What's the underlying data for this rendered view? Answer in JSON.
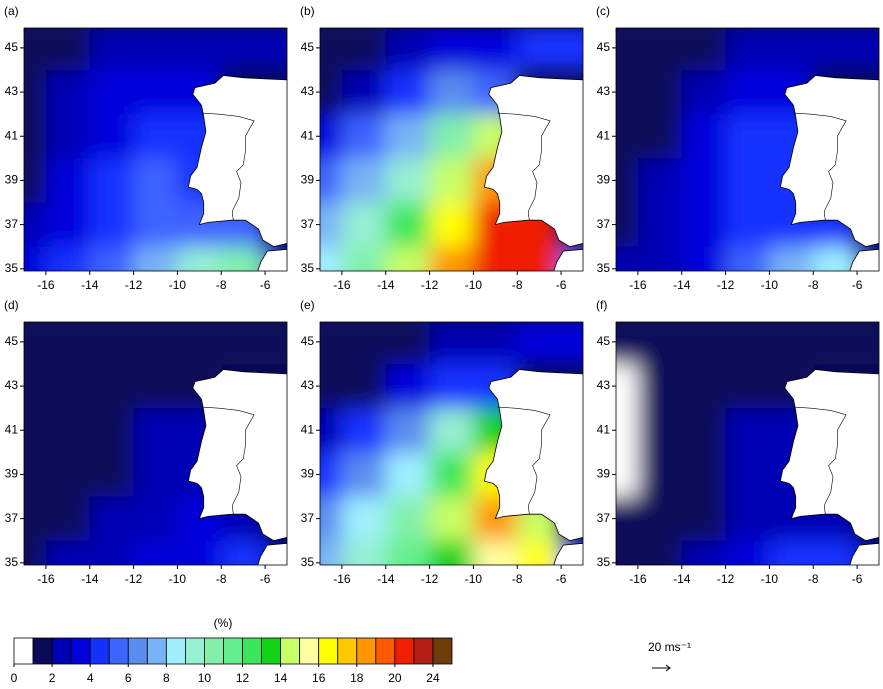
{
  "chart_data": [
    {
      "type": "contour",
      "title": "(a)",
      "x": [
        -17,
        -15,
        -13,
        -11,
        -9,
        -7,
        -5
      ],
      "y": [
        45,
        43,
        41,
        39,
        37,
        35
      ],
      "values": [
        [
          1.5,
          1.5,
          2.5,
          2.5,
          2.5,
          2.5,
          2.5
        ],
        [
          1.5,
          2.5,
          3.5,
          3.5,
          3.5,
          null,
          null
        ],
        [
          1.5,
          2.5,
          3.5,
          4.5,
          4.5,
          null,
          null
        ],
        [
          1.5,
          3.5,
          4.5,
          5.5,
          4.5,
          null,
          null
        ],
        [
          2.5,
          3.5,
          4.5,
          5.5,
          5.5,
          5.5,
          null
        ],
        [
          3.5,
          4.5,
          5.5,
          7.5,
          9.5,
          10.5,
          3.5
        ]
      ],
      "xlim": [
        -17,
        -5
      ],
      "ylim": [
        34.9,
        45.9
      ],
      "xticks": [
        -16,
        -14,
        -12,
        -10,
        -8,
        -6
      ],
      "yticks": [
        35,
        37,
        39,
        41,
        43,
        45
      ]
    },
    {
      "type": "contour",
      "title": "(b)",
      "x": [
        -17,
        -15,
        -13,
        -11,
        -9,
        -7,
        -5
      ],
      "y": [
        45,
        43,
        41,
        39,
        37,
        35
      ],
      "values": [
        [
          1.5,
          1.5,
          2.5,
          3.5,
          3.5,
          4.5,
          4.5
        ],
        [
          1.5,
          2.5,
          4.5,
          6.5,
          5.5,
          null,
          null
        ],
        [
          3.5,
          5.5,
          7.5,
          10.5,
          14.5,
          null,
          null
        ],
        [
          5.5,
          7.5,
          9.5,
          14.5,
          18.5,
          null,
          null
        ],
        [
          7.5,
          9.5,
          12.5,
          16.5,
          20.5,
          20.5,
          null
        ],
        [
          8.5,
          10.5,
          14.5,
          18.5,
          20.5,
          20.5,
          5.5
        ]
      ],
      "xlim": [
        -17,
        -5
      ],
      "ylim": [
        34.9,
        45.9
      ],
      "xticks": [
        -16,
        -14,
        -12,
        -10,
        -8,
        -6
      ],
      "yticks": [
        35,
        37,
        39,
        41,
        43,
        45
      ]
    },
    {
      "type": "contour",
      "title": "(c)",
      "x": [
        -17,
        -15,
        -13,
        -11,
        -9,
        -7,
        -5
      ],
      "y": [
        45,
        43,
        41,
        39,
        37,
        35
      ],
      "values": [
        [
          1.5,
          1.5,
          1.5,
          2.5,
          2.5,
          2.5,
          2.5
        ],
        [
          1.5,
          1.5,
          2.5,
          3.5,
          3.5,
          null,
          null
        ],
        [
          1.5,
          1.5,
          3.5,
          4.5,
          4.5,
          null,
          null
        ],
        [
          1.5,
          2.5,
          3.5,
          4.5,
          4.5,
          null,
          null
        ],
        [
          1.5,
          2.5,
          3.5,
          4.5,
          4.5,
          4.5,
          null
        ],
        [
          2.5,
          2.5,
          3.5,
          5.5,
          7.5,
          8.5,
          2.5
        ]
      ],
      "xlim": [
        -17,
        -5
      ],
      "ylim": [
        34.9,
        45.9
      ],
      "xticks": [
        -16,
        -14,
        -12,
        -10,
        -8,
        -6
      ],
      "yticks": [
        35,
        37,
        39,
        41,
        43,
        45
      ]
    },
    {
      "type": "contour",
      "title": "(d)",
      "x": [
        -17,
        -15,
        -13,
        -11,
        -9,
        -7,
        -5
      ],
      "y": [
        45,
        43,
        41,
        39,
        37,
        35
      ],
      "values": [
        [
          1.5,
          1.5,
          1.5,
          1.5,
          1.5,
          1.5,
          1.5
        ],
        [
          1.5,
          1.5,
          1.5,
          1.5,
          1.5,
          null,
          null
        ],
        [
          1.5,
          1.5,
          1.5,
          2.5,
          2.5,
          null,
          null
        ],
        [
          1.5,
          1.5,
          1.5,
          2.5,
          2.5,
          null,
          null
        ],
        [
          1.5,
          1.5,
          2.5,
          2.5,
          3.5,
          2.5,
          null
        ],
        [
          1.5,
          2.5,
          2.5,
          3.5,
          3.5,
          4.5,
          2.5
        ]
      ],
      "xlim": [
        -17,
        -5
      ],
      "ylim": [
        34.9,
        45.9
      ],
      "xticks": [
        -16,
        -14,
        -12,
        -10,
        -8,
        -6
      ],
      "yticks": [
        35,
        37,
        39,
        41,
        43,
        45
      ]
    },
    {
      "type": "contour",
      "title": "(e)",
      "x": [
        -17,
        -15,
        -13,
        -11,
        -9,
        -7,
        -5
      ],
      "y": [
        45,
        43,
        41,
        39,
        37,
        35
      ],
      "values": [
        [
          1.5,
          1.5,
          1.5,
          2.5,
          2.5,
          3.5,
          3.5
        ],
        [
          1.5,
          1.5,
          3.5,
          4.5,
          4.5,
          null,
          null
        ],
        [
          2.5,
          4.5,
          6.5,
          9.5,
          13.5,
          null,
          null
        ],
        [
          4.5,
          6.5,
          8.5,
          12.5,
          16.5,
          null,
          null
        ],
        [
          6.5,
          8.5,
          10.5,
          14.5,
          18.5,
          14.5,
          null
        ],
        [
          7.5,
          9.5,
          11.5,
          13.5,
          15.5,
          16.5,
          4.5
        ]
      ],
      "xlim": [
        -17,
        -5
      ],
      "ylim": [
        34.9,
        45.9
      ],
      "xticks": [
        -16,
        -14,
        -12,
        -10,
        -8,
        -6
      ],
      "yticks": [
        35,
        37,
        39,
        41,
        43,
        45
      ]
    },
    {
      "type": "contour",
      "title": "(f)",
      "x": [
        -17,
        -15,
        -13,
        -11,
        -9,
        -7,
        -5
      ],
      "y": [
        45,
        43,
        41,
        39,
        37,
        35
      ],
      "values": [
        [
          1.5,
          1.5,
          1.5,
          1.5,
          1.5,
          1.5,
          1.5
        ],
        [
          0.5,
          1.5,
          1.5,
          1.5,
          1.5,
          null,
          null
        ],
        [
          0.5,
          1.5,
          1.5,
          2.5,
          2.5,
          null,
          null
        ],
        [
          0.5,
          1.5,
          1.5,
          2.5,
          2.5,
          null,
          null
        ],
        [
          1.5,
          1.5,
          1.5,
          2.5,
          2.5,
          2.5,
          null
        ],
        [
          1.5,
          1.5,
          2.5,
          3.5,
          4.5,
          4.5,
          2.5
        ]
      ],
      "xlim": [
        -17,
        -5
      ],
      "ylim": [
        34.9,
        45.9
      ],
      "xticks": [
        -16,
        -14,
        -12,
        -10,
        -8,
        -6
      ],
      "yticks": [
        35,
        37,
        39,
        41,
        43,
        45
      ]
    }
  ],
  "colorbar": {
    "label": "(%)",
    "bounds": [
      0,
      1,
      2,
      3,
      4,
      5,
      6,
      7,
      8,
      9,
      10,
      11,
      12,
      13,
      14,
      15,
      16,
      17,
      18,
      19,
      20,
      22,
      24,
      26
    ],
    "colors": [
      "#ffffff",
      "#0a0a5a",
      "#0000b4",
      "#0000dc",
      "#1432ff",
      "#3c64ff",
      "#5a8cf0",
      "#78b4f5",
      "#a0f0ff",
      "#96f0d2",
      "#82f0aa",
      "#64f08c",
      "#3ce65a",
      "#14d214",
      "#c8ff64",
      "#ffffa0",
      "#ffff00",
      "#ffc800",
      "#ff9600",
      "#ff5a00",
      "#f01e00",
      "#b41e14",
      "#6e3c0a"
    ],
    "ticks": [
      0,
      2,
      4,
      6,
      8,
      10,
      12,
      14,
      16,
      18,
      20,
      24
    ]
  },
  "vector_key": {
    "label": "20 ms⁻¹"
  }
}
